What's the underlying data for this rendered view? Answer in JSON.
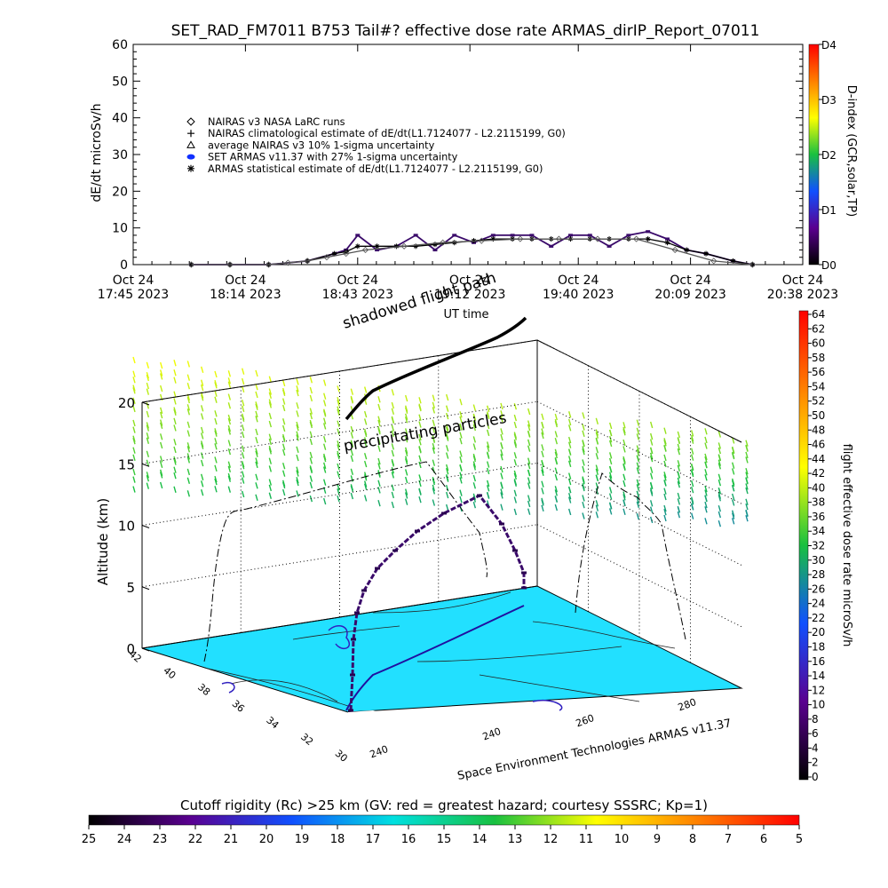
{
  "chart_data": [
    {
      "type": "line",
      "title": "SET_RAD_FM7011  B753 Tail#? effective dose rate ARMAS_dirIP_Report_07011",
      "xlabel": "UT time",
      "ylabel": "dE/dt microSv/h",
      "ylim": [
        0,
        60
      ],
      "y_ticks": [
        "0",
        "10",
        "20",
        "30",
        "40",
        "50",
        "60"
      ],
      "x_ticks": [
        {
          "line1": "Oct 24",
          "line2": "17:45 2023"
        },
        {
          "line1": "Oct 24",
          "line2": "18:14 2023"
        },
        {
          "line1": "Oct 24",
          "line2": "18:43 2023"
        },
        {
          "line1": "Oct 24",
          "line2": "19:12 2023"
        },
        {
          "line1": "Oct 24",
          "line2": "19:40 2023"
        },
        {
          "line1": "Oct 24",
          "line2": "20:09 2023"
        },
        {
          "line1": "Oct 24",
          "line2": "20:38 2023"
        }
      ],
      "x_minutes_ticks": [
        0,
        29,
        58,
        87,
        115,
        144,
        173
      ],
      "legend": {
        "placement": "top-left",
        "entries": [
          {
            "symbol": "diamond",
            "label": "NAIRAS v3 NASA LaRC runs"
          },
          {
            "symbol": "plus",
            "label": "NAIRAS climatological estimate of dE/dt(L1.7124077 - L2.2115199, G0)"
          },
          {
            "symbol": "triangle",
            "label": "average NAIRAS v3 10% 1-sigma uncertainty"
          },
          {
            "symbol": "dot",
            "label": "SET ARMAS v11.37 with 27% 1-sigma uncertainty"
          },
          {
            "symbol": "star",
            "label": "ARMAS statistical estimate of dE/dt(L1.7124077 - L2.2115199, G0)"
          }
        ]
      },
      "series": [
        {
          "name": "SET ARMAS v11.37 with 27% 1-sigma uncertainty",
          "color": "#3a0a6a",
          "x_minutes": [
            15,
            25,
            35,
            45,
            52,
            55,
            58,
            63,
            68,
            73,
            78,
            83,
            88,
            93,
            98,
            103,
            108,
            113,
            118,
            123,
            128,
            133,
            138,
            143,
            148,
            155,
            160
          ],
          "values": [
            0,
            0,
            0,
            1,
            3,
            4,
            8,
            4,
            5,
            8,
            4,
            8,
            6,
            8,
            8,
            8,
            5,
            8,
            8,
            5,
            8,
            9,
            7,
            4,
            3,
            1,
            0
          ]
        },
        {
          "name": "ARMAS statistical estimate of dE/dt(L1.7124077 - L2.2115199, G0)",
          "color": "#000000",
          "x_minutes": [
            15,
            25,
            35,
            45,
            52,
            55,
            58,
            63,
            68,
            73,
            78,
            83,
            88,
            93,
            98,
            103,
            108,
            113,
            118,
            123,
            128,
            133,
            138,
            143,
            148,
            155,
            160
          ],
          "values": [
            0,
            0,
            0,
            1,
            3,
            3.5,
            5,
            5,
            5,
            5,
            5.5,
            6,
            6.5,
            7,
            7,
            7,
            7,
            7,
            7,
            7,
            7,
            7,
            6,
            4,
            3,
            1,
            0
          ]
        },
        {
          "name": "NAIRAS climatological estimate of dE/dt(L1.7124077 - L2.2115199, G0)",
          "color": "#555555",
          "x_minutes": [
            15,
            25,
            35,
            40,
            45,
            50,
            55,
            60,
            70,
            80,
            90,
            100,
            110,
            120,
            130,
            140,
            150,
            160
          ],
          "values": [
            0,
            0,
            0,
            0.5,
            1,
            2,
            3,
            4,
            5,
            6,
            6.5,
            7,
            7,
            7,
            7,
            4,
            1,
            0
          ]
        }
      ],
      "right_colorbar": {
        "label": "D-index (GCR,solar,TP)",
        "ticks": [
          "D0",
          "D1",
          "D2",
          "D3",
          "D4"
        ],
        "colors": [
          "#000000",
          "#5a0090",
          "#1050ff",
          "#18c040",
          "#ffff00",
          "#ff8000",
          "#ff0000"
        ]
      }
    },
    {
      "type": "scatter",
      "title": "",
      "zlabel": "Altitude (km)",
      "z_ticks": [
        "0",
        "5",
        "10",
        "15",
        "20"
      ],
      "lat_ticks": [
        "42",
        "40",
        "38",
        "36",
        "34",
        "32",
        "30"
      ],
      "lon_ticks": [
        "240",
        "240",
        "260",
        "280"
      ],
      "annotations": {
        "shadow": "shadowed flight path",
        "precip": "precipitating particles"
      },
      "credit": "Space Environment Technologies ARMAS v11.37",
      "flight_track_altitude_km": [
        0,
        2,
        4,
        6,
        8,
        9,
        10,
        11,
        11.5,
        12,
        10,
        7,
        5,
        4.5
      ],
      "right_colorbar": {
        "label": "flight effective dose rate microSv/h",
        "ticks": [
          "0",
          "2",
          "4",
          "6",
          "8",
          "10",
          "12",
          "14",
          "16",
          "18",
          "20",
          "22",
          "24",
          "26",
          "28",
          "30",
          "32",
          "34",
          "36",
          "38",
          "40",
          "42",
          "44",
          "46",
          "48",
          "50",
          "52",
          "54",
          "56",
          "58",
          "60",
          "62",
          "64"
        ],
        "colors": [
          "#000000",
          "#5a0090",
          "#1050ff",
          "#18c040",
          "#ffff00",
          "#ff8000",
          "#ff0000"
        ]
      },
      "bottom_colorbar": {
        "label": "Cutoff rigidity (Rc) >25 km (GV: red = greatest hazard; courtesy SSSRC; Kp=1)",
        "ticks": [
          "25",
          "24",
          "23",
          "22",
          "21",
          "20",
          "19",
          "18",
          "17",
          "16",
          "15",
          "14",
          "13",
          "12",
          "11",
          "10",
          "9",
          "8",
          "7",
          "6",
          "5"
        ],
        "colors": [
          "#000000",
          "#5a0090",
          "#1050ff",
          "#00e0e0",
          "#18c040",
          "#ffff00",
          "#ff8000",
          "#ff0000"
        ]
      },
      "map_color": "#22e0ff"
    }
  ]
}
